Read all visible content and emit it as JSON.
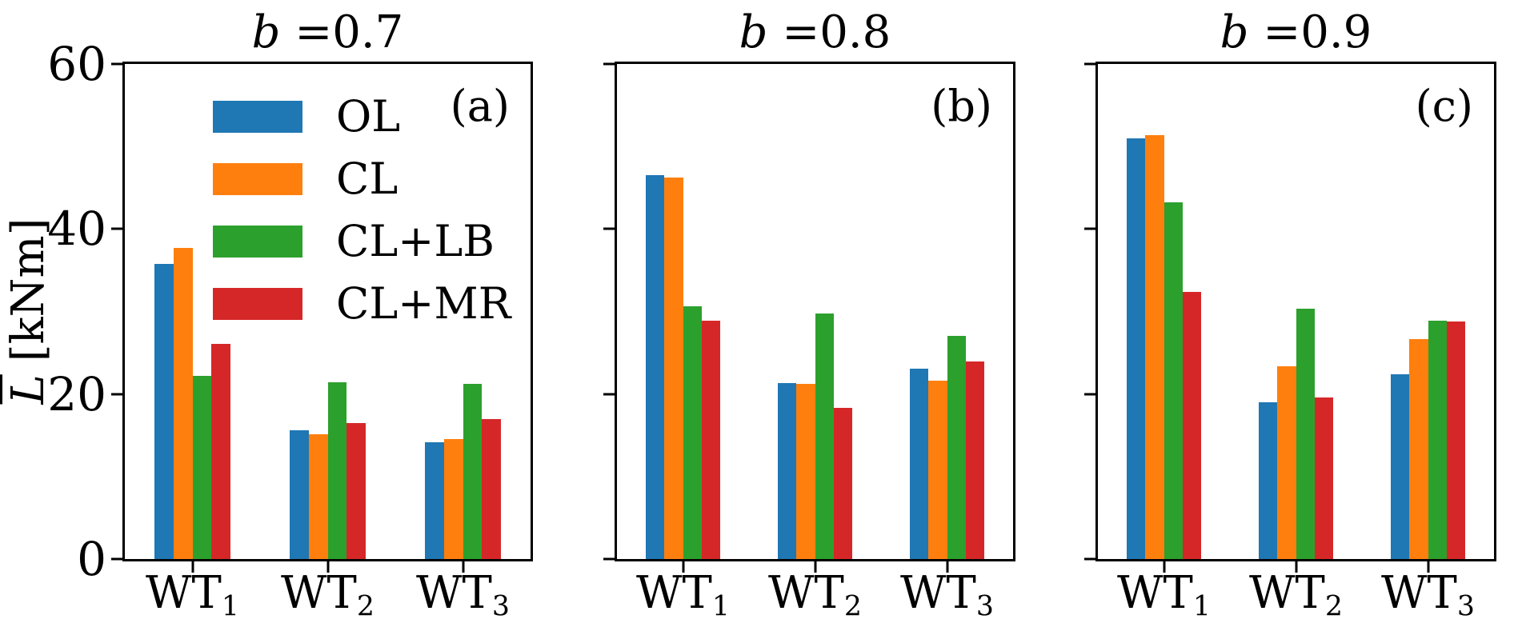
{
  "figure": {
    "ylabel_symbol": "L",
    "ylabel_unit": "[kNm]"
  },
  "chart_data": [
    {
      "type": "bar",
      "title_var": "b",
      "title_rest": " =0.7",
      "panel_label": "(a)",
      "categories": [
        {
          "base": "WT",
          "sub": "1"
        },
        {
          "base": "WT",
          "sub": "2"
        },
        {
          "base": "WT",
          "sub": "3"
        }
      ],
      "series": [
        {
          "name": "OL",
          "color": "#1f77b4",
          "values": [
            35.8,
            15.6,
            14.2
          ]
        },
        {
          "name": "CL",
          "color": "#ff7f0e",
          "values": [
            37.7,
            15.1,
            14.5
          ]
        },
        {
          "name": "CL+LB",
          "color": "#2ca02c",
          "values": [
            22.2,
            21.4,
            21.2
          ]
        },
        {
          "name": "CL+MR",
          "color": "#d62728",
          "values": [
            26.1,
            16.5,
            17.0
          ]
        }
      ],
      "ylim": [
        0,
        60
      ],
      "yticks": [
        0,
        20,
        40,
        60
      ],
      "ytick_labels_visible": true,
      "legend_visible": true,
      "grid": false,
      "legend_position": "upper-left"
    },
    {
      "type": "bar",
      "title_var": "b",
      "title_rest": " =0.8",
      "panel_label": "(b)",
      "categories": [
        {
          "base": "WT",
          "sub": "1"
        },
        {
          "base": "WT",
          "sub": "2"
        },
        {
          "base": "WT",
          "sub": "3"
        }
      ],
      "series": [
        {
          "name": "OL",
          "color": "#1f77b4",
          "values": [
            46.5,
            21.3,
            23.1
          ]
        },
        {
          "name": "CL",
          "color": "#ff7f0e",
          "values": [
            46.2,
            21.2,
            21.6
          ]
        },
        {
          "name": "CL+LB",
          "color": "#2ca02c",
          "values": [
            30.6,
            29.8,
            27.0
          ]
        },
        {
          "name": "CL+MR",
          "color": "#d62728",
          "values": [
            28.9,
            18.3,
            23.9
          ]
        }
      ],
      "ylim": [
        0,
        60
      ],
      "yticks": [
        0,
        20,
        40,
        60
      ],
      "ytick_labels_visible": false,
      "legend_visible": false,
      "grid": false
    },
    {
      "type": "bar",
      "title_var": "b",
      "title_rest": " =0.9",
      "panel_label": "(c)",
      "categories": [
        {
          "base": "WT",
          "sub": "1"
        },
        {
          "base": "WT",
          "sub": "2"
        },
        {
          "base": "WT",
          "sub": "3"
        }
      ],
      "series": [
        {
          "name": "OL",
          "color": "#1f77b4",
          "values": [
            51.0,
            19.0,
            22.4
          ]
        },
        {
          "name": "CL",
          "color": "#ff7f0e",
          "values": [
            51.4,
            23.4,
            26.7
          ]
        },
        {
          "name": "CL+LB",
          "color": "#2ca02c",
          "values": [
            43.2,
            30.3,
            28.9
          ]
        },
        {
          "name": "CL+MR",
          "color": "#d62728",
          "values": [
            32.4,
            19.6,
            28.8
          ]
        }
      ],
      "ylim": [
        0,
        60
      ],
      "yticks": [
        0,
        20,
        40,
        60
      ],
      "ytick_labels_visible": false,
      "legend_visible": false,
      "grid": false
    }
  ]
}
